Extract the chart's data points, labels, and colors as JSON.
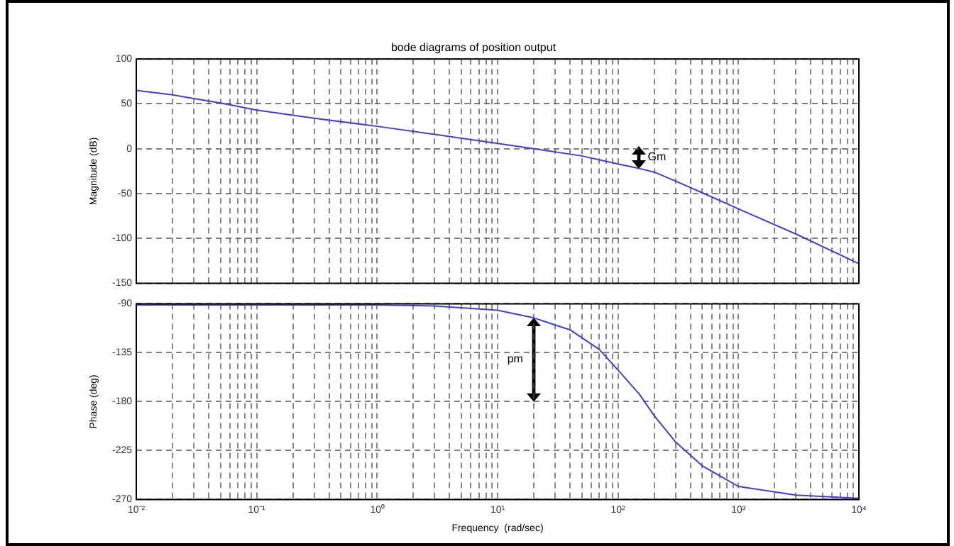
{
  "chart_data": [
    {
      "type": "line",
      "title": "bode diagrams of position output",
      "ylabel": "Magnitude (dB)",
      "log": "x",
      "xlim": [
        0.01,
        10000
      ],
      "ylim": [
        -150,
        100
      ],
      "yticks": [
        -150,
        -100,
        -50,
        0,
        50,
        100
      ],
      "xticks": [
        0.01,
        0.02,
        0.03,
        0.04,
        0.05,
        0.06,
        0.07,
        0.08,
        0.09,
        0.1,
        0.2,
        0.3,
        0.4,
        0.5,
        0.6,
        0.7,
        0.8,
        0.9,
        1,
        2,
        3,
        4,
        5,
        6,
        7,
        8,
        9,
        10,
        20,
        30,
        40,
        50,
        60,
        70,
        80,
        90,
        100,
        200,
        300,
        400,
        500,
        600,
        700,
        800,
        900,
        1000,
        2000,
        3000,
        4000,
        5000,
        6000,
        7000,
        8000,
        9000,
        10000
      ],
      "tick_labels": "y",
      "grid": true,
      "legend": false,
      "series": [
        {
          "color": "#4040d0",
          "x": [
            0.01,
            0.02,
            0.05,
            0.1,
            0.3,
            1,
            3,
            10,
            20,
            50,
            100,
            150,
            200,
            300,
            500,
            1000,
            3000,
            10000
          ],
          "values": [
            65,
            60,
            51,
            43,
            34,
            25,
            16,
            6,
            0,
            -8,
            -17,
            -22,
            -26,
            -36,
            -49,
            -67,
            -95,
            -128
          ]
        }
      ],
      "annotations": [
        {
          "text": "Gm",
          "x": 150,
          "y": -22
        }
      ]
    },
    {
      "type": "line",
      "xlabel": "Frequency  (rad/sec)",
      "ylabel": "Phase (deg)",
      "log": "x",
      "xlim": [
        0.01,
        10000
      ],
      "ylim": [
        -270,
        -90
      ],
      "yticks": [
        -270,
        -225,
        -180,
        -135,
        -90
      ],
      "xticks": [
        {
          "value": 0.01,
          "label": "10⁻²"
        },
        {
          "value": 0.02,
          "label": null
        },
        {
          "value": 0.03,
          "label": null
        },
        {
          "value": 0.04,
          "label": null
        },
        {
          "value": 0.05,
          "label": null
        },
        {
          "value": 0.06,
          "label": null
        },
        {
          "value": 0.07,
          "label": null
        },
        {
          "value": 0.08,
          "label": null
        },
        {
          "value": 0.09,
          "label": null
        },
        {
          "value": 0.1,
          "label": "10⁻¹"
        },
        {
          "value": 0.2,
          "label": null
        },
        {
          "value": 0.3,
          "label": null
        },
        {
          "value": 0.4,
          "label": null
        },
        {
          "value": 0.5,
          "label": null
        },
        {
          "value": 0.6,
          "label": null
        },
        {
          "value": 0.7,
          "label": null
        },
        {
          "value": 0.8,
          "label": null
        },
        {
          "value": 0.9,
          "label": null
        },
        {
          "value": 1,
          "label": "10⁰"
        },
        {
          "value": 2,
          "label": null
        },
        {
          "value": 3,
          "label": null
        },
        {
          "value": 4,
          "label": null
        },
        {
          "value": 5,
          "label": null
        },
        {
          "value": 6,
          "label": null
        },
        {
          "value": 7,
          "label": null
        },
        {
          "value": 8,
          "label": null
        },
        {
          "value": 9,
          "label": null
        },
        {
          "value": 10,
          "label": "10¹"
        },
        {
          "value": 20,
          "label": null
        },
        {
          "value": 30,
          "label": null
        },
        {
          "value": 40,
          "label": null
        },
        {
          "value": 50,
          "label": null
        },
        {
          "value": 60,
          "label": null
        },
        {
          "value": 70,
          "label": null
        },
        {
          "value": 80,
          "label": null
        },
        {
          "value": 90,
          "label": null
        },
        {
          "value": 100,
          "label": "10²"
        },
        {
          "value": 200,
          "label": null
        },
        {
          "value": 300,
          "label": null
        },
        {
          "value": 400,
          "label": null
        },
        {
          "value": 500,
          "label": null
        },
        {
          "value": 600,
          "label": null
        },
        {
          "value": 700,
          "label": null
        },
        {
          "value": 800,
          "label": null
        },
        {
          "value": 900,
          "label": null
        },
        {
          "value": 1000,
          "label": "10³"
        },
        {
          "value": 2000,
          "label": null
        },
        {
          "value": 3000,
          "label": null
        },
        {
          "value": 4000,
          "label": null
        },
        {
          "value": 5000,
          "label": null
        },
        {
          "value": 6000,
          "label": null
        },
        {
          "value": 7000,
          "label": null
        },
        {
          "value": 8000,
          "label": null
        },
        {
          "value": 9000,
          "label": null
        },
        {
          "value": 10000,
          "label": "10⁴"
        }
      ],
      "grid": true,
      "legend": false,
      "series": [
        {
          "color": "#4040d0",
          "x": [
            0.01,
            0.1,
            1,
            3,
            10,
            20,
            40,
            70,
            100,
            150,
            200,
            300,
            500,
            1000,
            3000,
            10000
          ],
          "values": [
            -91,
            -91,
            -91,
            -92,
            -96,
            -103,
            -114,
            -132,
            -151,
            -173,
            -193,
            -217,
            -239,
            -258,
            -266,
            -269
          ]
        }
      ],
      "annotations": [
        "pm"
      ]
    }
  ]
}
